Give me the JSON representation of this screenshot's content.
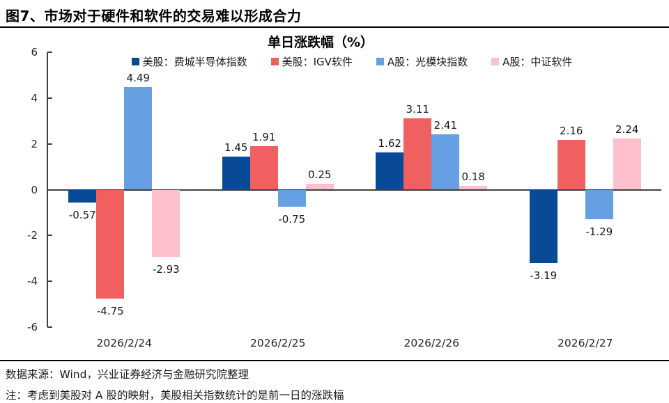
{
  "page": {
    "title": "图7、市场对于硬件和软件的交易难以形成合力",
    "source_line": "数据来源：Wind，兴业证券经济与金融研究院整理",
    "note_line": "注：考虑到美股对 A 股的映射，美股相关指数统计的是前一日的涨跌幅"
  },
  "chart_data": {
    "type": "bar",
    "title": "单日涨跌幅（%）",
    "categories": [
      "2026/2/24",
      "2026/2/25",
      "2026/2/26",
      "2026/2/27"
    ],
    "series": [
      {
        "name": "美股：费城半导体指数",
        "color": "#084A96",
        "values": [
          -0.57,
          1.45,
          1.62,
          -3.19
        ]
      },
      {
        "name": "美股：IGV软件",
        "color": "#F06060",
        "values": [
          -4.75,
          1.91,
          3.11,
          2.16
        ]
      },
      {
        "name": "A股：光模块指数",
        "color": "#66A0E2",
        "values": [
          4.49,
          -0.75,
          2.41,
          -1.29
        ]
      },
      {
        "name": "A股：中证软件",
        "color": "#FFC0CD",
        "values": [
          -2.93,
          0.25,
          0.18,
          2.24
        ]
      }
    ],
    "ylim": [
      -6,
      6
    ],
    "yticks": [
      6,
      4,
      2,
      0,
      -2,
      -4,
      -6
    ],
    "grid": false,
    "legend_position": "top",
    "data_labels": true,
    "axis_color": "#404040"
  }
}
